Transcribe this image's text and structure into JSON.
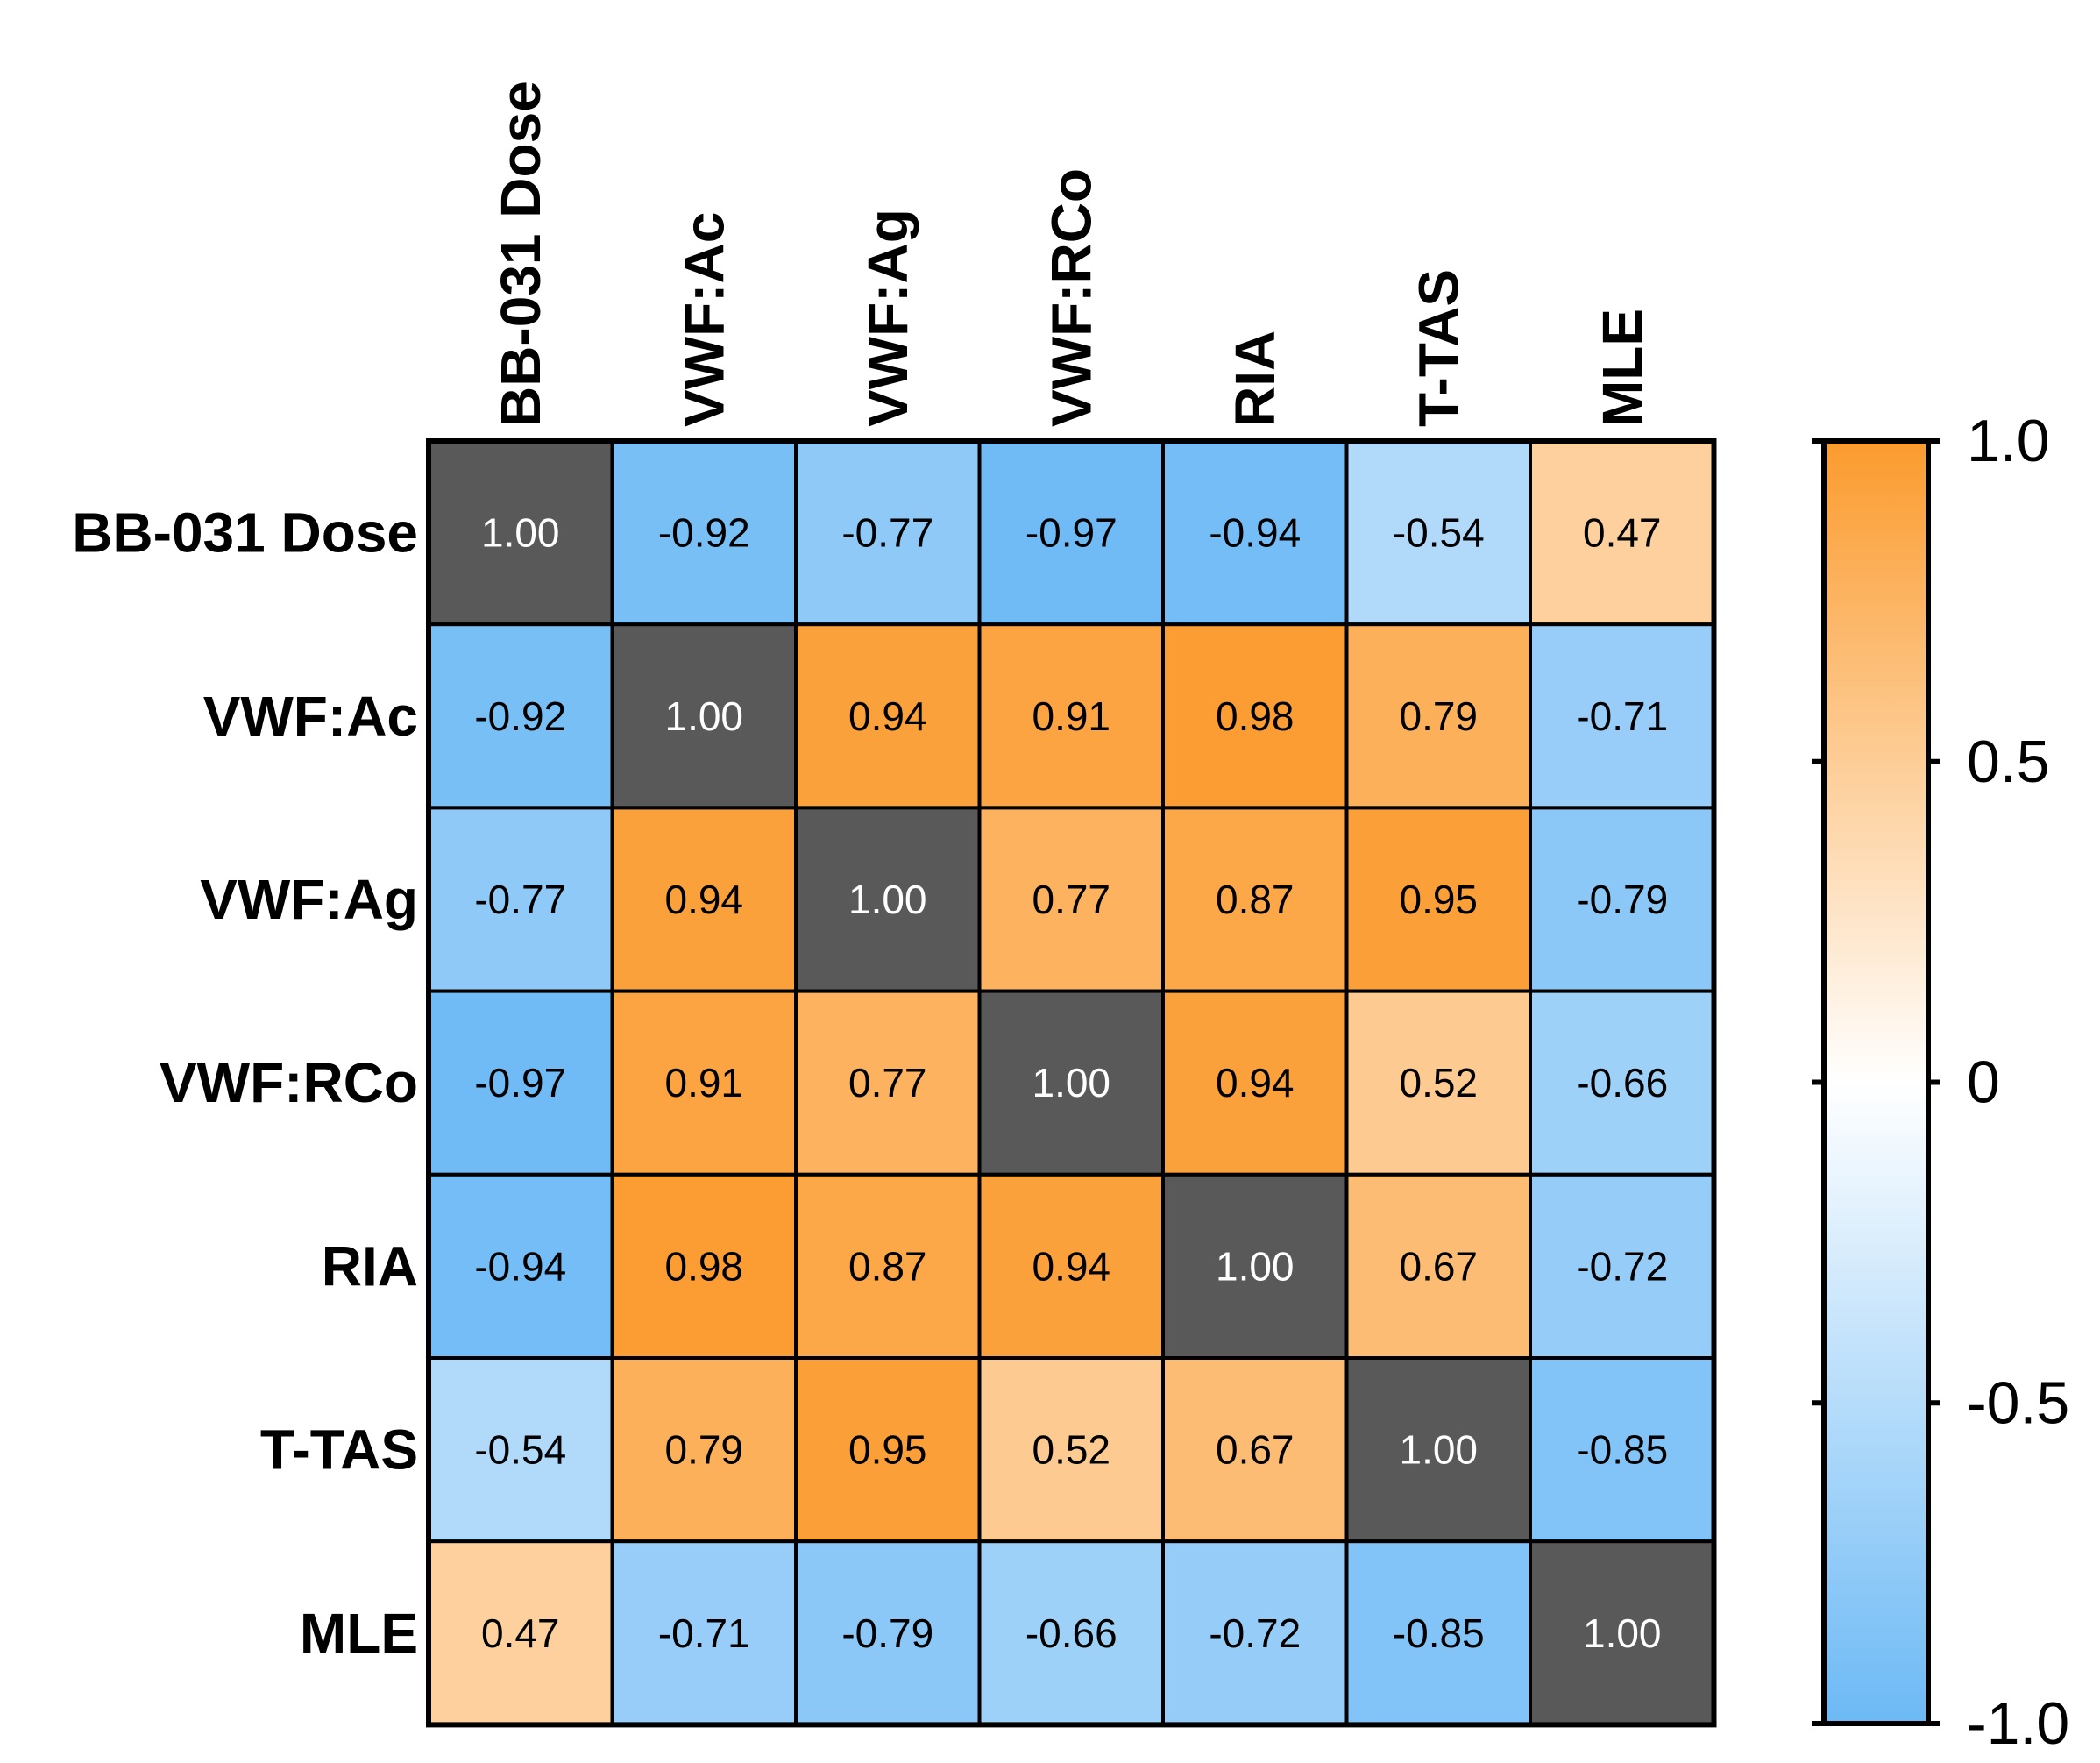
{
  "chart_data": {
    "type": "heatmap",
    "title": "",
    "variables": [
      "BB-031 Dose",
      "VWF:Ac",
      "VWF:Ag",
      "VWF:RCo",
      "RIA",
      "T-TAS",
      "MLE"
    ],
    "values": [
      [
        "1.00",
        "-0.92",
        "-0.77",
        "-0.97",
        "-0.94",
        "-0.54",
        "0.47"
      ],
      [
        "-0.92",
        "1.00",
        "0.94",
        "0.91",
        "0.98",
        "0.79",
        "-0.71"
      ],
      [
        "-0.77",
        "0.94",
        "1.00",
        "0.77",
        "0.87",
        "0.95",
        "-0.79"
      ],
      [
        "-0.97",
        "0.91",
        "0.77",
        "1.00",
        "0.94",
        "0.52",
        "-0.66"
      ],
      [
        "-0.94",
        "0.98",
        "0.87",
        "0.94",
        "1.00",
        "0.67",
        "-0.72"
      ],
      [
        "-0.54",
        "0.79",
        "0.95",
        "0.52",
        "0.67",
        "1.00",
        "-0.85"
      ],
      [
        "0.47",
        "-0.71",
        "-0.79",
        "-0.66",
        "-0.72",
        "-0.85",
        "1.00"
      ]
    ],
    "diagonal_color": "#595959",
    "colorbar": {
      "min": -1.0,
      "max": 1.0,
      "ticks": [
        -1.0,
        -0.5,
        0,
        0.5,
        1.0
      ],
      "tick_labels": [
        "-1.0",
        "-0.5",
        "0",
        "0.5",
        "1.0"
      ],
      "low_color": "#6cb9f5",
      "mid_color": "#ffffff",
      "high_color": "#fb9b2e"
    }
  }
}
